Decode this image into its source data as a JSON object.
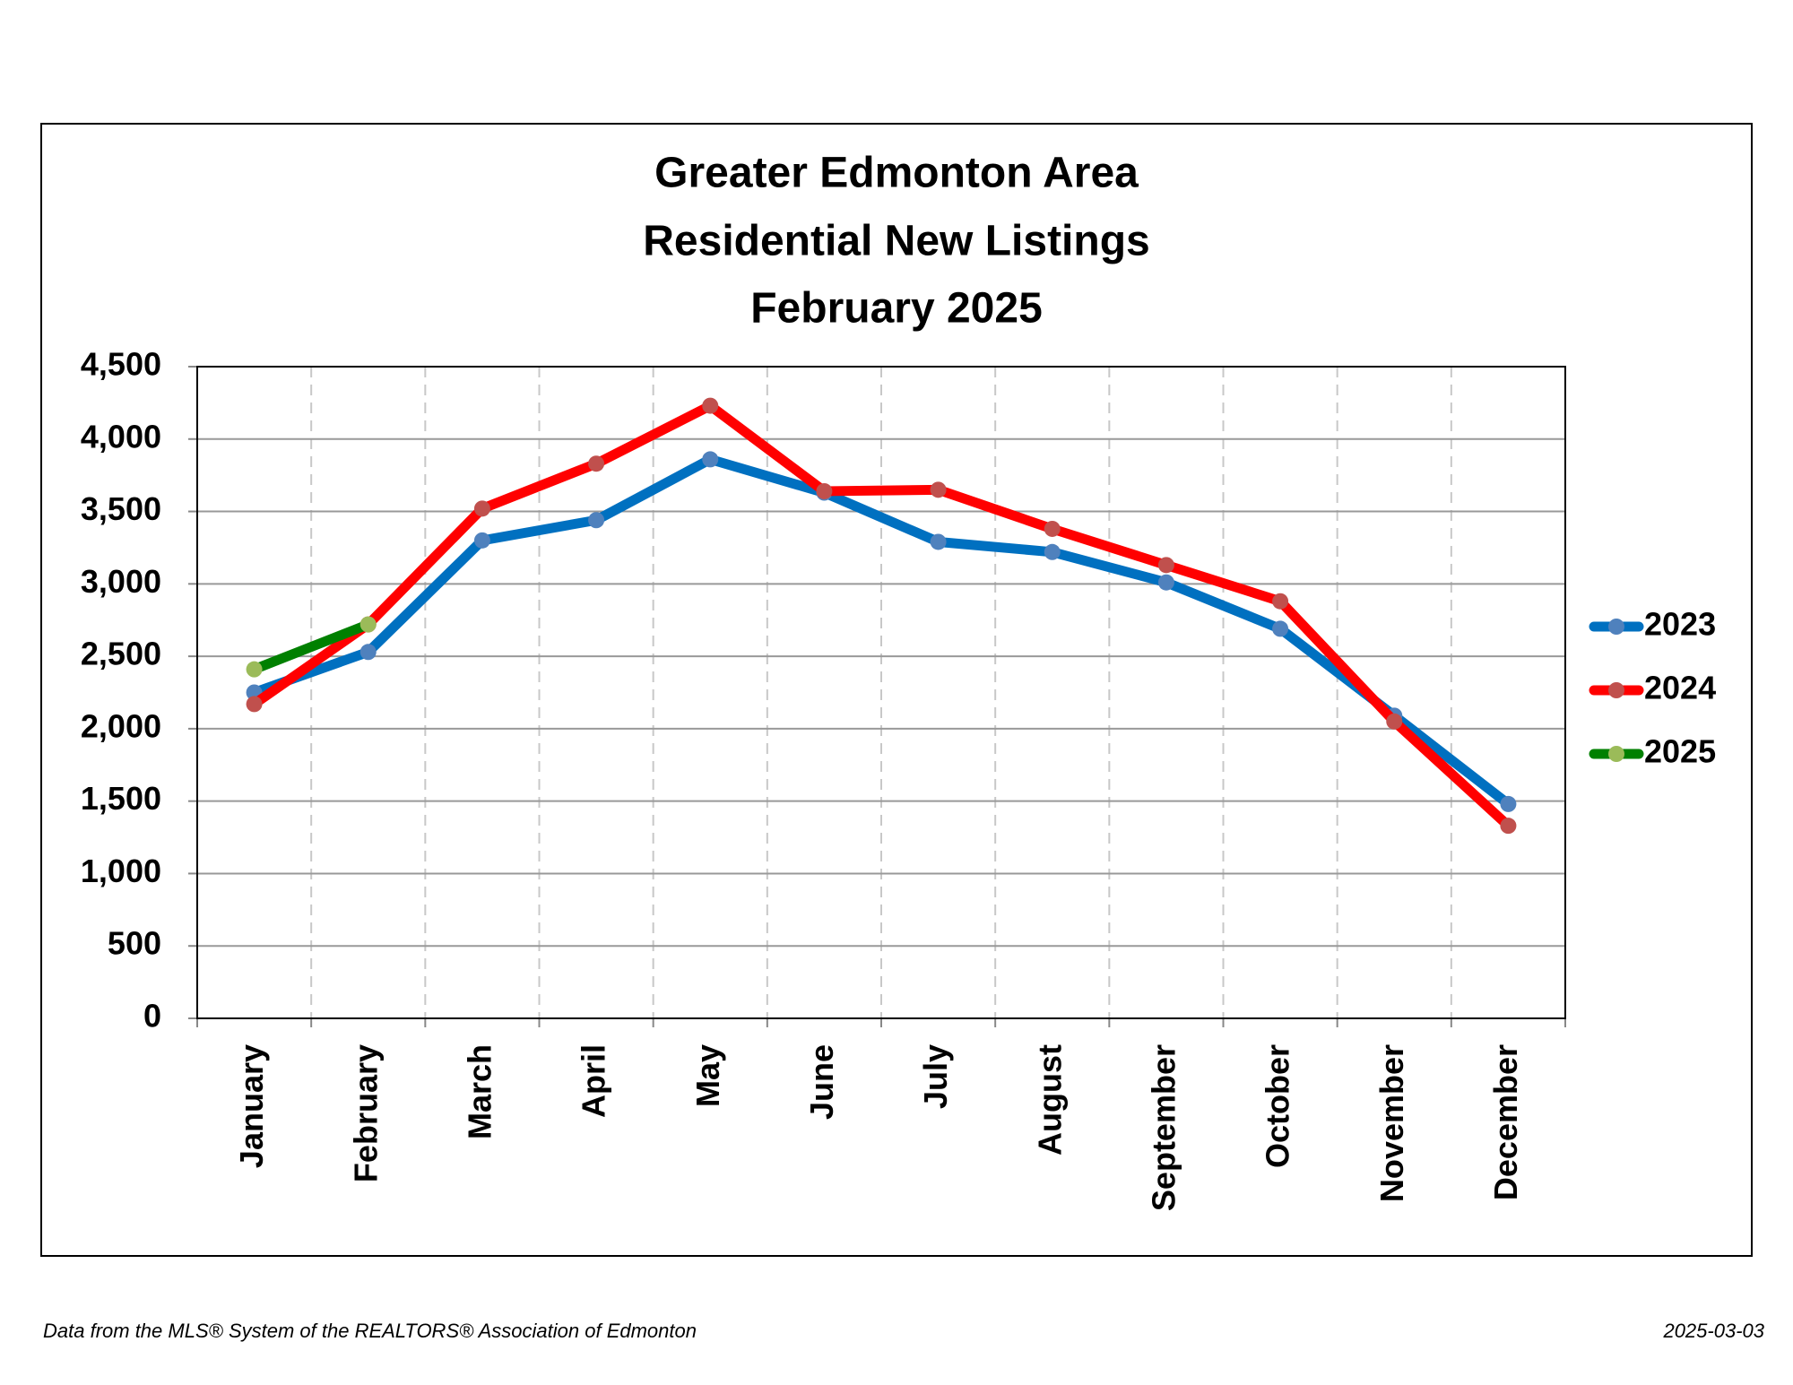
{
  "chart_data": {
    "type": "line",
    "title": [
      "Greater Edmonton Area",
      "Residential New Listings",
      "February 2025"
    ],
    "categories": [
      "January",
      "February",
      "March",
      "April",
      "May",
      "June",
      "July",
      "August",
      "September",
      "October",
      "November",
      "December"
    ],
    "series": [
      {
        "name": "2023",
        "color": "#0070c0",
        "marker_color": "#4f81bd",
        "values": [
          2250,
          2530,
          3300,
          3440,
          3860,
          3630,
          3290,
          3220,
          3010,
          2690,
          2090,
          1480
        ]
      },
      {
        "name": "2024",
        "color": "#ff0000",
        "marker_color": "#c0504d",
        "values": [
          2170,
          2720,
          3520,
          3830,
          4230,
          3640,
          3650,
          3380,
          3130,
          2880,
          2050,
          1330
        ]
      },
      {
        "name": "2025",
        "color": "#008000",
        "marker_color": "#9bbb59",
        "values": [
          2410,
          2720,
          null,
          null,
          null,
          null,
          null,
          null,
          null,
          null,
          null,
          null
        ]
      }
    ],
    "ylim": [
      0,
      4500
    ],
    "yticks": [
      0,
      500,
      {
        "value": 1000,
        "label": "1,000"
      },
      {
        "value": 1500,
        "label": "1,500"
      },
      {
        "value": 2000,
        "label": "2,000"
      },
      {
        "value": 2500,
        "label": "2,500"
      },
      {
        "value": 3000,
        "label": "3,000"
      },
      {
        "value": 3500,
        "label": "3,500"
      },
      {
        "value": 4000,
        "label": "4,000"
      },
      {
        "value": 4500,
        "label": "4,500"
      }
    ],
    "grid": true,
    "legend": "right",
    "footer": {
      "source": "Data from the MLS® System of the REALTORS® Association of Edmonton",
      "date": "2025-03-03"
    }
  }
}
